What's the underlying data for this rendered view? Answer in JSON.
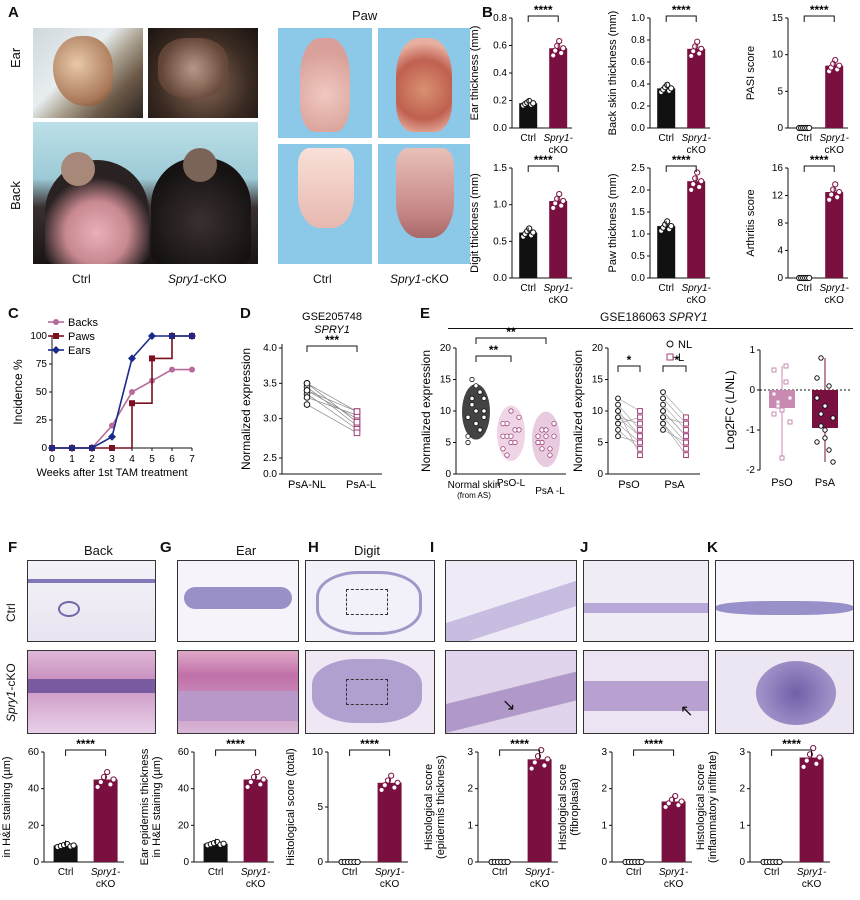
{
  "figure": {
    "panel_letters": [
      "A",
      "B",
      "C",
      "D",
      "E",
      "F",
      "G",
      "H",
      "I",
      "J",
      "K"
    ],
    "A": {
      "row_ear": "Ear",
      "row_back": "Back",
      "paw_title": "Paw",
      "col_ctrl": "Ctrl",
      "col_ko": "Spry1-cKO",
      "col_ko_gene": "Spry1",
      "col_ko_suffix": "-cKO"
    },
    "F": {
      "title": "Back"
    },
    "G": {
      "title": "Ear"
    },
    "H": {
      "title": "Digit"
    },
    "row_ctrl": "Ctrl",
    "row_ko_gene": "Spry1",
    "row_ko_suffix": "-cKO",
    "E_header": "GSE186063",
    "E_gene": "SPRY1",
    "colors": {
      "ctrl": "#111111",
      "ko": "#7a1040",
      "ko_light": "#a0407a",
      "backs": "#b86b9a",
      "paws": "#7a1020",
      "ears": "#1a2a8a"
    }
  },
  "chart_data": [
    {
      "id": "B1",
      "type": "bar",
      "categories": [
        "Ctrl",
        "Spry1-cKO"
      ],
      "values": [
        0.18,
        0.58
      ],
      "ylabel": "Ear thickness (mm)",
      "ylim": [
        0,
        0.8
      ],
      "yticks": [
        "0.0",
        "0.2",
        "0.4",
        "0.6",
        "0.8"
      ],
      "sig": "****"
    },
    {
      "id": "B2",
      "type": "bar",
      "categories": [
        "Ctrl",
        "Spry1-cKO"
      ],
      "values": [
        0.36,
        0.72
      ],
      "ylabel": "Back skin thickness (mm)",
      "ylim": [
        0,
        1.0
      ],
      "yticks": [
        "0.0",
        "0.2",
        "0.4",
        "0.6",
        "0.8",
        "1.0"
      ],
      "sig": "****"
    },
    {
      "id": "B3",
      "type": "bar",
      "categories": [
        "Ctrl",
        "Spry1-cKO"
      ],
      "values": [
        0,
        8.5
      ],
      "ylabel": "PASI score",
      "ylim": [
        0,
        15
      ],
      "yticks": [
        "0",
        "5",
        "10",
        "15"
      ],
      "sig": "****"
    },
    {
      "id": "B4",
      "type": "bar",
      "categories": [
        "Ctrl",
        "Spry1-cKO"
      ],
      "values": [
        0.62,
        1.05
      ],
      "ylabel": "Digit thickness (mm)",
      "ylim": [
        0,
        1.5
      ],
      "yticks": [
        "0.0",
        "0.5",
        "1.0",
        "1.5"
      ],
      "sig": "****"
    },
    {
      "id": "B5",
      "type": "bar",
      "categories": [
        "Ctrl",
        "Spry1-cKO"
      ],
      "values": [
        1.18,
        2.2
      ],
      "ylabel": "Paw thickness (mm)",
      "ylim": [
        0,
        2.5
      ],
      "yticks": [
        "0.0",
        "0.5",
        "1.0",
        "1.5",
        "2.0",
        "2.5"
      ],
      "sig": "****"
    },
    {
      "id": "B6",
      "type": "bar",
      "categories": [
        "Ctrl",
        "Spry1-cKO"
      ],
      "values": [
        0,
        12.5
      ],
      "ylabel": "Arthritis score",
      "ylim": [
        0,
        16
      ],
      "yticks": [
        "0",
        "4",
        "8",
        "12",
        "16"
      ],
      "sig": "****"
    },
    {
      "id": "C",
      "type": "line",
      "x": [
        0,
        1,
        2,
        3,
        4,
        5,
        6,
        7
      ],
      "xlabel": "Weeks after 1st TAM treatment",
      "ylabel": "Incidence %",
      "ylim": [
        0,
        100
      ],
      "yticks": [
        "0",
        "25",
        "50",
        "75",
        "100"
      ],
      "series": [
        {
          "name": "Backs",
          "values": [
            0,
            0,
            0,
            20,
            50,
            60,
            70,
            70
          ]
        },
        {
          "name": "Paws",
          "values": [
            0,
            0,
            0,
            0,
            40,
            80,
            100,
            100
          ]
        },
        {
          "name": "Ears",
          "values": [
            0,
            0,
            0,
            10,
            80,
            100,
            100,
            100
          ]
        }
      ]
    },
    {
      "id": "D",
      "type": "scatter",
      "title": "GSE205748",
      "title_gene": "SPRY1",
      "categories": [
        "PsA-NL",
        "PsA-L"
      ],
      "ylabel": "Normalized expression",
      "yticks": [
        "0.0",
        "2.5",
        "3.0",
        "3.5",
        "4.0"
      ],
      "sig": "***",
      "pairs": [
        [
          3.5,
          3.1
        ],
        [
          3.45,
          2.9
        ],
        [
          3.4,
          3.0
        ],
        [
          3.35,
          2.85
        ],
        [
          3.3,
          3.05
        ],
        [
          3.5,
          2.95
        ],
        [
          3.2,
          2.8
        ],
        [
          3.4,
          3.1
        ]
      ]
    },
    {
      "id": "E1",
      "type": "scatter",
      "categories": [
        "Normal skin",
        "PsO-L",
        "PsA -L"
      ],
      "cat_note": "(from AS)",
      "ylabel": "Normalized expression",
      "ylim": [
        0,
        20
      ],
      "yticks": [
        "0",
        "5",
        "10",
        "15",
        "20"
      ],
      "sig": [
        "**",
        "**"
      ],
      "groups": [
        [
          9,
          12,
          14,
          7,
          10,
          6,
          11,
          8,
          13,
          9,
          5,
          15,
          10,
          7,
          12
        ],
        [
          6,
          8,
          5,
          7,
          9,
          4,
          6,
          10,
          5,
          7,
          8,
          3,
          6
        ],
        [
          5,
          7,
          6,
          4,
          8,
          6,
          5,
          7,
          3,
          6,
          5,
          4
        ]
      ]
    },
    {
      "id": "E2",
      "type": "scatter",
      "categories": [
        "PsO",
        "PsA"
      ],
      "legend": [
        "NL",
        "L"
      ],
      "ylabel": "Normalized expression",
      "ylim": [
        0,
        20
      ],
      "yticks": [
        "0",
        "5",
        "10",
        "15",
        "20"
      ],
      "sig": [
        "*",
        "**"
      ],
      "pairs": [
        [
          [
            12,
            10
          ],
          [
            10,
            6
          ],
          [
            9,
            8
          ],
          [
            8,
            5
          ],
          [
            11,
            7
          ],
          [
            7,
            4
          ],
          [
            9,
            6
          ],
          [
            10,
            3
          ],
          [
            8,
            9
          ],
          [
            6,
            5
          ]
        ],
        [
          [
            12,
            8
          ],
          [
            10,
            6
          ],
          [
            9,
            5
          ],
          [
            11,
            7
          ],
          [
            8,
            4
          ],
          [
            13,
            9
          ],
          [
            10,
            6
          ],
          [
            9,
            8
          ],
          [
            7,
            5
          ],
          [
            8,
            3
          ]
        ]
      ]
    },
    {
      "id": "E3",
      "type": "bar",
      "categories": [
        "PsO",
        "PsA"
      ],
      "values": [
        -0.45,
        -0.95
      ],
      "ylabel": "Log2FC (L/NL)",
      "ylim": [
        -2,
        1
      ],
      "yticks": [
        "-2",
        "-1",
        "0",
        "1"
      ],
      "points": [
        [
          -0.1,
          -0.3,
          -0.5,
          0.2,
          -0.8,
          0.5,
          -0.4,
          -1.7,
          0.6,
          -0.2,
          -0.6
        ],
        [
          -0.2,
          -0.6,
          -1.0,
          -1.5,
          -1.8,
          0.3,
          -0.9,
          -1.2,
          0.1,
          -0.7,
          -1.3,
          0.8,
          -0.4
        ]
      ]
    },
    {
      "id": "F",
      "type": "bar",
      "categories": [
        "Ctrl",
        "Spry1-cKO"
      ],
      "values": [
        9,
        45
      ],
      "ylabel": "Back epidermis thickness in H&E staining (µm)",
      "ylim": [
        0,
        60
      ],
      "yticks": [
        "0",
        "20",
        "40",
        "60"
      ],
      "sig": "****"
    },
    {
      "id": "G",
      "type": "bar",
      "categories": [
        "Ctrl",
        "Spry1-cKO"
      ],
      "values": [
        10,
        45
      ],
      "ylabel": "Ear epidermis thickness in H&E staining (µm)",
      "ylim": [
        0,
        60
      ],
      "yticks": [
        "0",
        "20",
        "40",
        "60"
      ],
      "sig": "****"
    },
    {
      "id": "H",
      "type": "bar",
      "categories": [
        "Ctrl",
        "Spry1-cKO"
      ],
      "values": [
        0,
        7.2
      ],
      "ylabel": "Histological score (total)",
      "ylim": [
        0,
        10
      ],
      "yticks": [
        "0",
        "5",
        "10"
      ],
      "sig": "****"
    },
    {
      "id": "I",
      "type": "bar",
      "categories": [
        "Ctrl",
        "Spry1-cKO"
      ],
      "values": [
        0,
        2.8
      ],
      "ylabel": "Histological score (epidermis thickness)",
      "ylim": [
        0,
        3
      ],
      "yticks": [
        "0",
        "1",
        "2",
        "3"
      ],
      "sig": "****"
    },
    {
      "id": "J",
      "type": "bar",
      "categories": [
        "Ctrl",
        "Spry1-cKO"
      ],
      "values": [
        0,
        1.65
      ],
      "ylabel": "Histological score (fibroplasia)",
      "ylim": [
        0,
        3
      ],
      "yticks": [
        "0",
        "1",
        "2",
        "3"
      ],
      "sig": "****"
    },
    {
      "id": "K",
      "type": "bar",
      "categories": [
        "Ctrl",
        "Spry1-cKO"
      ],
      "values": [
        0,
        2.85
      ],
      "ylabel": "Histological score (inflammatory infiltrate)",
      "ylim": [
        0,
        3
      ],
      "yticks": [
        "0",
        "1",
        "2",
        "3"
      ],
      "sig": "****"
    }
  ]
}
